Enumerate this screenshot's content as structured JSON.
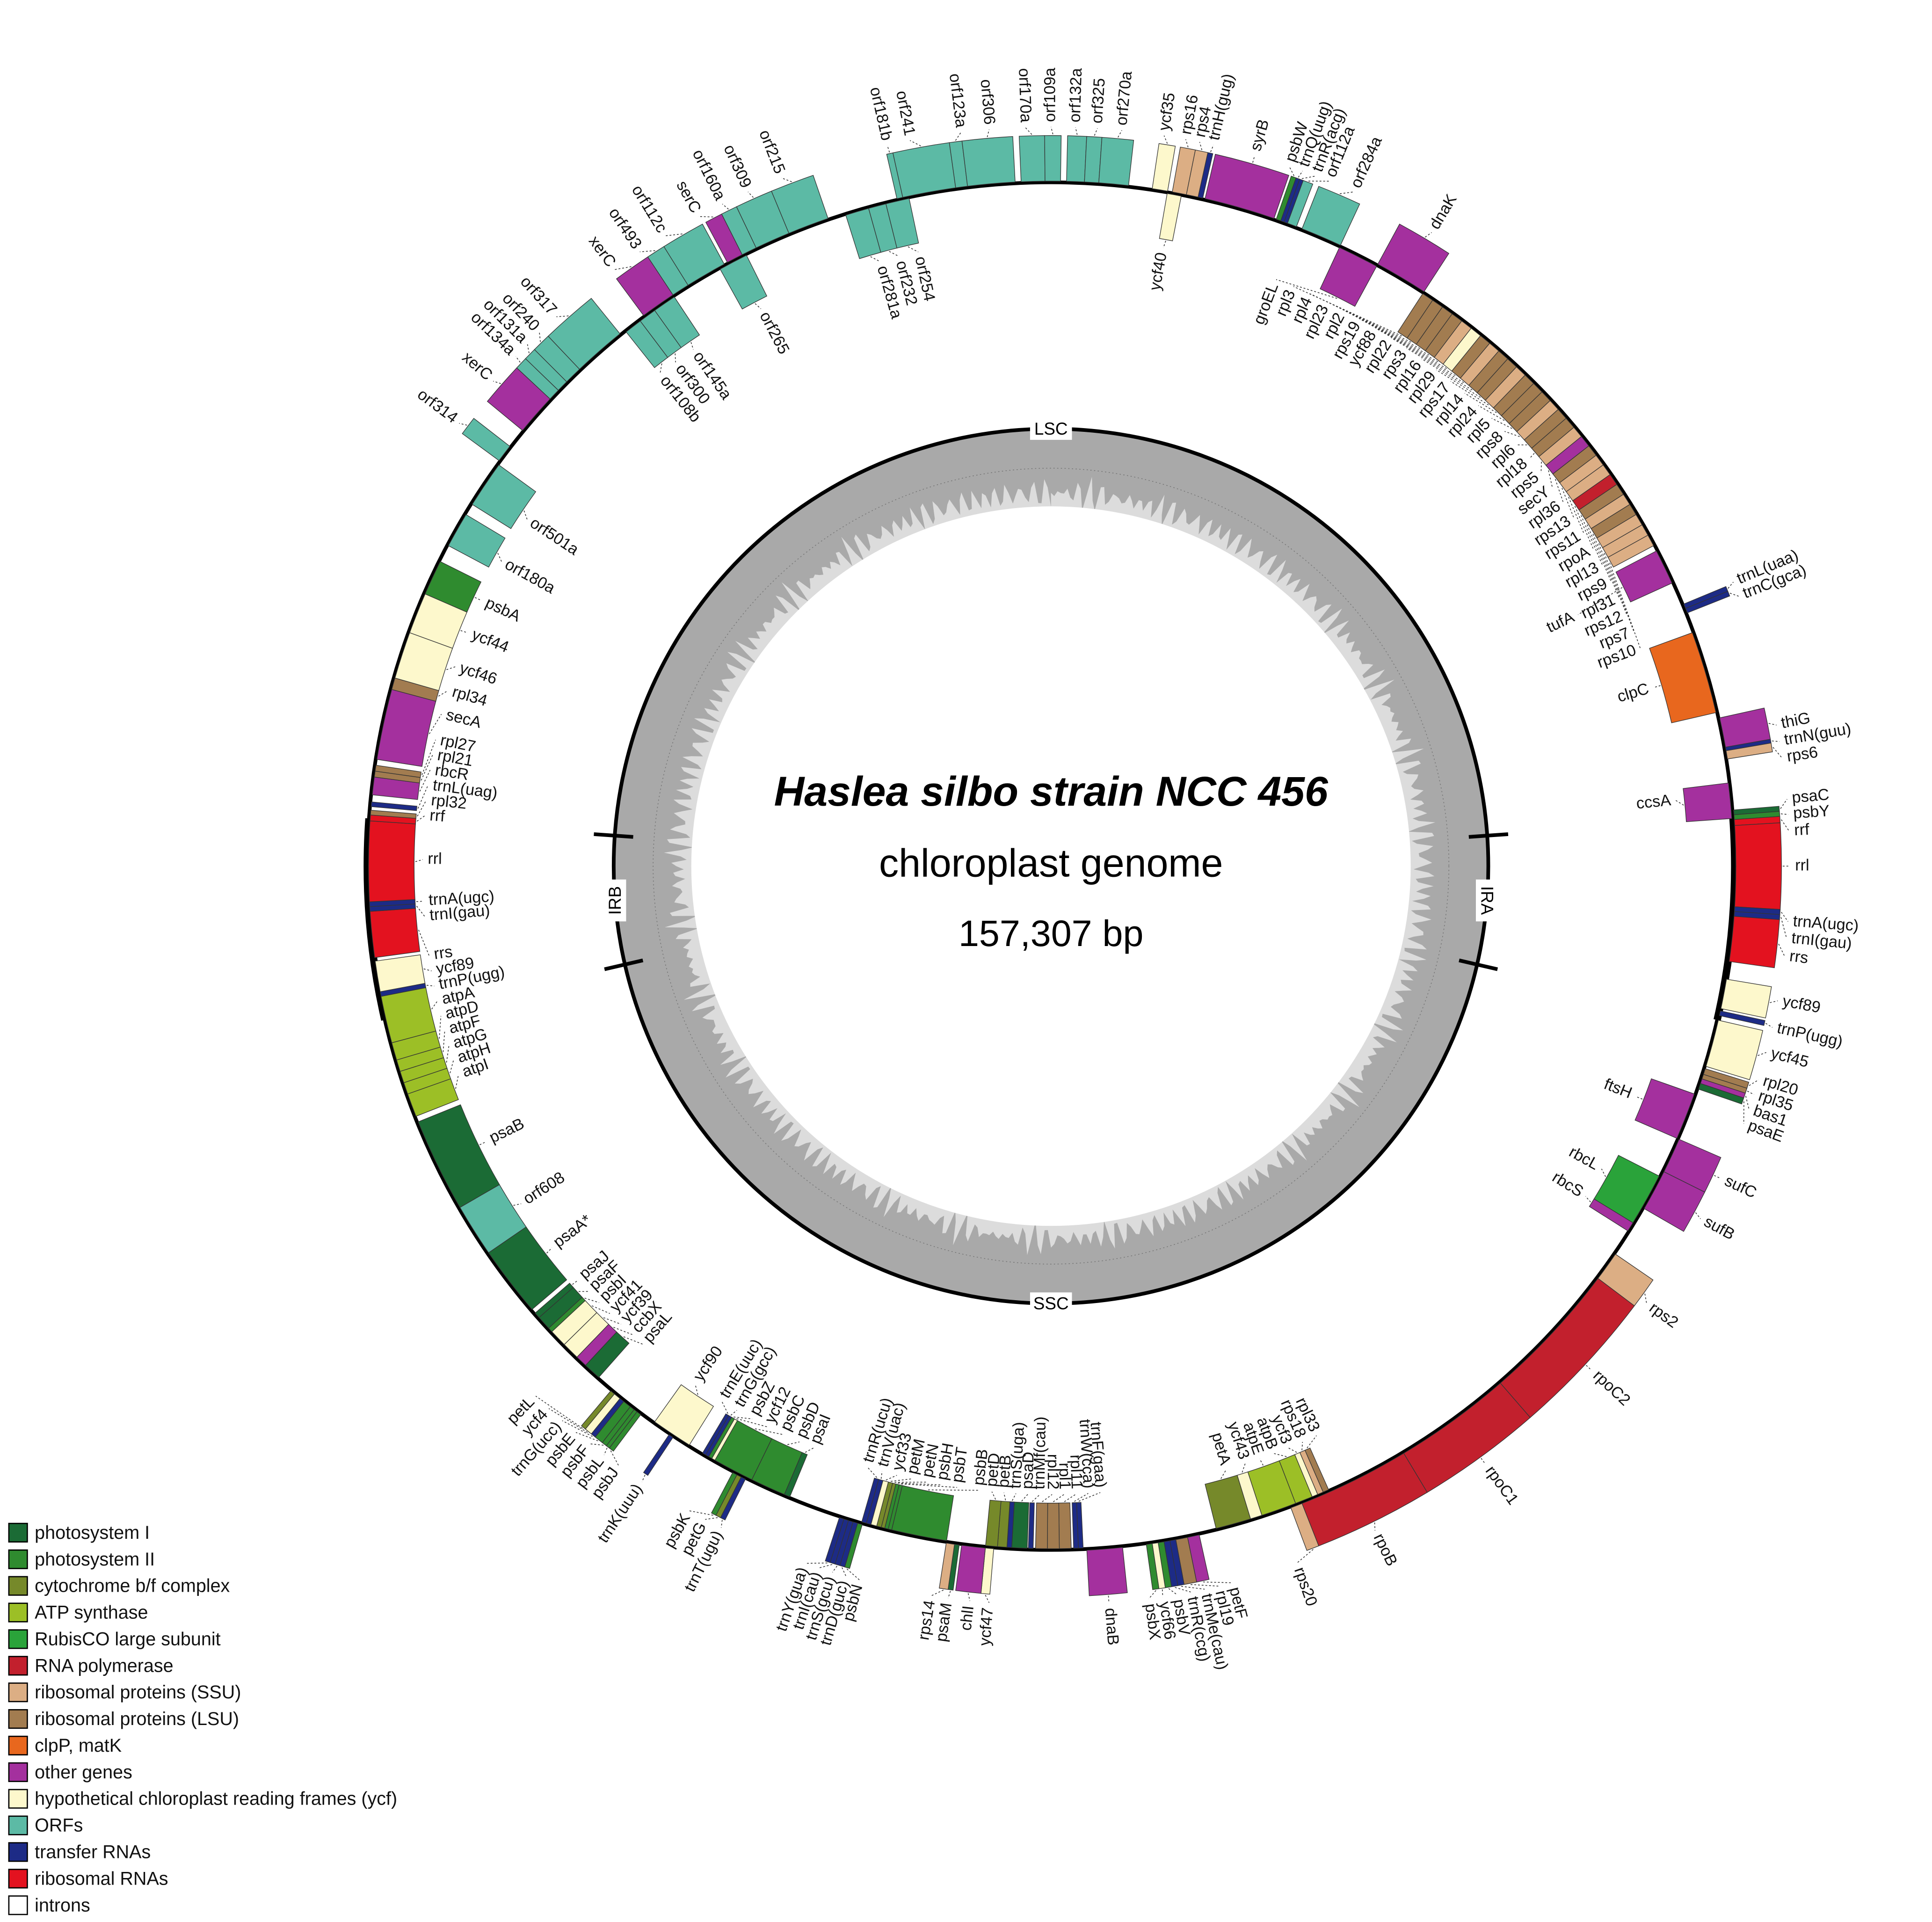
{
  "title": "Haslea silbo strain NCC 456",
  "subtitle": "chloroplast genome",
  "genome_size": "157,307 bp",
  "regions": {
    "lsc": "LSC",
    "ira": "IRA",
    "ssc": "SSC",
    "irb": "IRB"
  },
  "legend": [
    {
      "label": "photosystem I",
      "color": "#1b6b35"
    },
    {
      "label": "photosystem II",
      "color": "#2f8b2f"
    },
    {
      "label": "cytochrome b/f complex",
      "color": "#76892a"
    },
    {
      "label": "ATP synthase",
      "color": "#9cbf26"
    },
    {
      "label": "RubisCO large subunit",
      "color": "#2aa33a"
    },
    {
      "label": "RNA polymerase",
      "color": "#c2202d"
    },
    {
      "label": "ribosomal proteins (SSU)",
      "color": "#dcae84"
    },
    {
      "label": "ribosomal proteins (LSU)",
      "color": "#a27c50"
    },
    {
      "label": "clpP, matK",
      "color": "#e8671e"
    },
    {
      "label": "other genes",
      "color": "#a4309e"
    },
    {
      "label": "hypothetical chloroplast reading frames (ycf)",
      "color": "#fdf8cc"
    },
    {
      "label": "ORFs",
      "color": "#5cbaa5"
    },
    {
      "label": "transfer RNAs",
      "color": "#1d2b86"
    },
    {
      "label": "ribosomal RNAs",
      "color": "#e3121f"
    },
    {
      "label": "introns",
      "color": "#ffffff"
    }
  ],
  "genes": [
    "orf281a",
    "orf232",
    "orf254",
    "orf181b",
    "orf241",
    "orf123a",
    "orf306",
    "orf170a",
    "orf109a",
    "orf132a",
    "orf325",
    "orf270a",
    "ycf35",
    "ycf40",
    "rps16",
    "rps4",
    "trnH(gug)",
    "syrB",
    "psbW",
    "trnQ(uug)",
    "trnR(acg)",
    "orf112a",
    "orf284a",
    "groEL",
    "dnaK",
    "rpl3",
    "rpl4",
    "rpl23",
    "rpl2",
    "rps19",
    "ycf88",
    "rpl22",
    "rps3",
    "rpl16",
    "rpl29",
    "rps17",
    "rpl14",
    "rpl24",
    "rpl5",
    "rps8",
    "rpl6",
    "rpl18",
    "rps5",
    "secY",
    "rpl36",
    "rps13",
    "rps11",
    "rpoA",
    "rpl13",
    "rps9",
    "rpl31",
    "rps12",
    "rps7",
    "rps10",
    "tufA",
    "trnL(uaa)",
    "trnC(gca)",
    "clpC",
    "thiG",
    "trnN(guu)",
    "rps6",
    "ccsA",
    "psaC",
    "psbY",
    "rrf",
    "rrl",
    "trnA(ugc)",
    "trnI(gau)",
    "rrs",
    "ycf89",
    "trnP(ugg)",
    "ycf45",
    "rpl20",
    "rpl35",
    "bas1",
    "psaE",
    "ftsH",
    "sufC",
    "sufB",
    "rbcL",
    "rbcS",
    "rps2",
    "rpoC2",
    "rpoC1",
    "rpoB",
    "rps20",
    "rpl33",
    "rps18",
    "ycf3",
    "atpB",
    "atpE",
    "ycf43",
    "petA",
    "petF",
    "rpl19",
    "trnMe(cau)",
    "trnR(ccg)",
    "psbV",
    "ycf66",
    "psbX",
    "dnaB",
    "trnF(gaa)",
    "trnW(cca)",
    "rpl11",
    "rpl1",
    "rpl12",
    "trnMf(cau)",
    "psaD",
    "trnS(uga)",
    "petB",
    "petD",
    "ycf47",
    "chlI",
    "psaM",
    "rps14",
    "psbB",
    "psbT",
    "psbH",
    "petN",
    "petM",
    "ycf33",
    "trnV(uac)",
    "trnR(ucu)",
    "psbN",
    "trnD(guc)",
    "trnS(gcu)",
    "trnI(cau)",
    "trnY(gua)",
    "psaI",
    "psbD",
    "psbC",
    "ycf12",
    "psbZ",
    "trnG(gcc)",
    "trnE(uuc)",
    "trnT(ugu)",
    "petG",
    "psbK",
    "ycf90",
    "trnK(uuu)",
    "psbJ",
    "psbL",
    "psbF",
    "psbE",
    "trnG(ucc)",
    "ycf4",
    "petL",
    "psaL",
    "ccbX",
    "ycf39",
    "ycf41",
    "psbI",
    "psaF",
    "psaJ",
    "psaA*",
    "orf608",
    "psaB",
    "atpI",
    "atpH",
    "atpG",
    "atpF",
    "atpD",
    "atpA",
    "trnP(ugg)",
    "ycf89",
    "rrs",
    "trnI(gau)",
    "trnA(ugc)",
    "rrl",
    "rrf",
    "rpl32",
    "trnL(uag)",
    "rbcR",
    "rpl21",
    "rpl27",
    "secA",
    "rpl34",
    "ycf46",
    "ycf44",
    "psbA",
    "orf180a",
    "orf501a",
    "orf314",
    "xerC",
    "orf134a",
    "orf131a",
    "orf240",
    "orf317",
    "orf108b",
    "orf300",
    "orf145a",
    "xerC",
    "orf493",
    "orf112c",
    "orf265",
    "serC",
    "orf160a",
    "orf309",
    "orf215"
  ]
}
